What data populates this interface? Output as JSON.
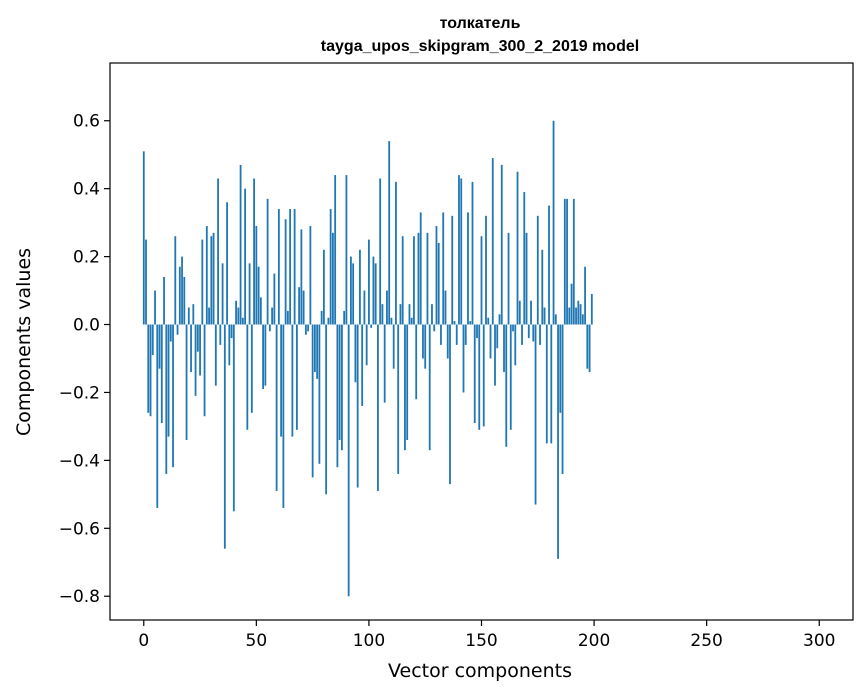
{
  "chart_data": {
    "type": "bar",
    "title_line1": "толкатель",
    "title_line2": "tayga_upos_skipgram_300_2_2019 model",
    "xlabel": "Vector components",
    "ylabel": "Components values",
    "xlim": [
      -15,
      315
    ],
    "ylim": [
      -0.87,
      0.77
    ],
    "xticks": [
      0,
      50,
      100,
      150,
      200,
      250,
      300
    ],
    "xtick_labels": [
      "0",
      "50",
      "100",
      "150",
      "200",
      "250",
      "300"
    ],
    "yticks": [
      0.6,
      0.4,
      0.2,
      0.0,
      -0.2,
      -0.4,
      -0.6,
      -0.8
    ],
    "ytick_labels": [
      "0.6",
      "0.4",
      "0.2",
      "0.0",
      "−0.2",
      "−0.4",
      "−0.6",
      "−0.8"
    ],
    "bar_color": "#1f77b4",
    "values": [
      0.51,
      0.25,
      -0.26,
      -0.27,
      -0.09,
      0.1,
      -0.54,
      -0.13,
      -0.29,
      0.14,
      -0.44,
      -0.33,
      -0.05,
      -0.42,
      0.26,
      -0.03,
      0.17,
      0.2,
      0.14,
      -0.34,
      0.05,
      -0.14,
      0.06,
      -0.21,
      -0.08,
      -0.15,
      0.25,
      -0.27,
      0.29,
      0.05,
      0.26,
      0.27,
      -0.18,
      0.43,
      -0.06,
      0.18,
      -0.66,
      0.36,
      -0.12,
      -0.04,
      -0.55,
      0.07,
      0.05,
      0.47,
      0.02,
      0.4,
      -0.31,
      0.18,
      -0.26,
      0.43,
      0.29,
      0.17,
      0.08,
      -0.19,
      -0.18,
      0.37,
      -0.02,
      0.05,
      0.15,
      -0.49,
      0.34,
      -0.33,
      -0.54,
      0.31,
      0.04,
      0.34,
      -0.33,
      0.34,
      -0.31,
      0.11,
      0.28,
      0.1,
      -0.03,
      -0.02,
      0.29,
      -0.45,
      -0.14,
      -0.16,
      -0.41,
      0.04,
      0.22,
      -0.5,
      0.02,
      0.34,
      0.27,
      0.44,
      -0.42,
      -0.34,
      -0.37,
      0.04,
      0.44,
      -0.8,
      0.2,
      0.18,
      -0.17,
      -0.48,
      0.22,
      -0.24,
      0.1,
      -0.12,
      0.25,
      -0.01,
      0.2,
      0.18,
      -0.49,
      0.43,
      0.06,
      -0.23,
      0.1,
      0.54,
      0.02,
      -0.13,
      0.42,
      -0.44,
      0.06,
      0.26,
      -0.37,
      -0.34,
      0.06,
      0.02,
      0.26,
      -0.22,
      0.27,
      0.33,
      -0.1,
      -0.13,
      0.27,
      -0.37,
      0.06,
      -0.02,
      0.29,
      0.24,
      -0.06,
      0.33,
      0.1,
      -0.1,
      -0.47,
      0.32,
      0.01,
      -0.06,
      0.44,
      0.43,
      -0.2,
      -0.06,
      0.33,
      0.01,
      0.42,
      -0.29,
      -0.04,
      -0.31,
      0.26,
      -0.3,
      0.32,
      0.02,
      -0.1,
      0.49,
      -0.18,
      -0.07,
      0.03,
      0.47,
      -0.14,
      -0.36,
      0.27,
      -0.31,
      -0.02,
      -0.12,
      0.45,
      0.07,
      -0.06,
      0.39,
      0.27,
      -0.04,
      0.07,
      -0.05,
      -0.53,
      0.32,
      -0.06,
      0.22,
      0.05,
      -0.35,
      0.35,
      -0.35,
      0.6,
      0.03,
      -0.69,
      -0.26,
      -0.44,
      0.37,
      0.37,
      0.05,
      0.12,
      0.37,
      0.05,
      0.07,
      0.06,
      0.03,
      0.17,
      -0.13,
      -0.14,
      0.09
    ]
  }
}
